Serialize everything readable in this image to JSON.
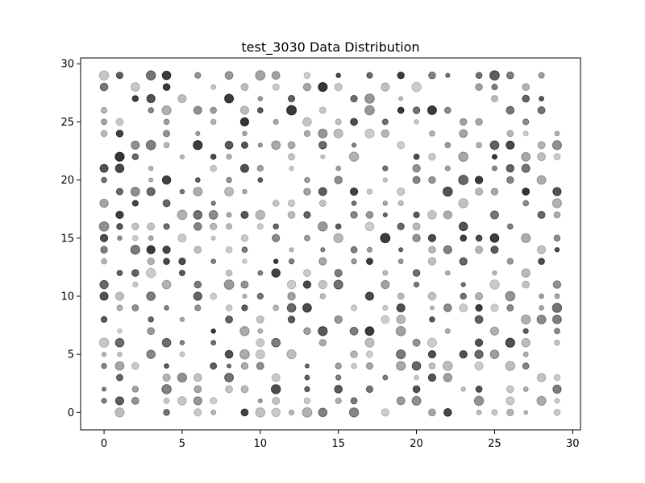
{
  "chart_data": {
    "type": "scatter",
    "title": "test_3030 Data Distribution",
    "xlabel": "",
    "ylabel": "",
    "xlim": [
      -1.5,
      30.5
    ],
    "ylim": [
      -1.5,
      30.5
    ],
    "xticks": [
      0,
      5,
      10,
      15,
      20,
      25,
      30
    ],
    "yticks": [
      0,
      5,
      10,
      15,
      20,
      25,
      30
    ],
    "grid": false,
    "marker_color": "#000000",
    "marker_alpha_range": [
      0.2,
      0.8
    ],
    "marker_size_range": [
      2.5,
      6
    ],
    "note_on_points": "Grid of x,y integer points in [0,29]; a subset of lattice positions is occupied, each with varying opacity and size",
    "points": [
      [
        0,
        29
      ],
      [
        1,
        29
      ],
      [
        3,
        29
      ],
      [
        4,
        29
      ],
      [
        6,
        29
      ],
      [
        8,
        29
      ],
      [
        10,
        29
      ],
      [
        11,
        29
      ],
      [
        13,
        29
      ],
      [
        15,
        29
      ],
      [
        17,
        29
      ],
      [
        19,
        29
      ],
      [
        21,
        29
      ],
      [
        22,
        29
      ],
      [
        24,
        29
      ],
      [
        25,
        29
      ],
      [
        26,
        29
      ],
      [
        28,
        29
      ],
      [
        0,
        28
      ],
      [
        2,
        28
      ],
      [
        4,
        28
      ],
      [
        7,
        28
      ],
      [
        9,
        28
      ],
      [
        11,
        28
      ],
      [
        13,
        28
      ],
      [
        14,
        28
      ],
      [
        15,
        28
      ],
      [
        18,
        28
      ],
      [
        20,
        28
      ],
      [
        24,
        28
      ],
      [
        25,
        28
      ],
      [
        27,
        28
      ],
      [
        2,
        27
      ],
      [
        3,
        27
      ],
      [
        5,
        27
      ],
      [
        8,
        27
      ],
      [
        10,
        27
      ],
      [
        12,
        27
      ],
      [
        16,
        27
      ],
      [
        17,
        27
      ],
      [
        19,
        27
      ],
      [
        25,
        27
      ],
      [
        27,
        27
      ],
      [
        28,
        27
      ],
      [
        0,
        26
      ],
      [
        3,
        26
      ],
      [
        4,
        26
      ],
      [
        6,
        26
      ],
      [
        7,
        26
      ],
      [
        9,
        26
      ],
      [
        10,
        26
      ],
      [
        12,
        26
      ],
      [
        14,
        26
      ],
      [
        17,
        26
      ],
      [
        19,
        26
      ],
      [
        20,
        26
      ],
      [
        21,
        26
      ],
      [
        22,
        26
      ],
      [
        26,
        26
      ],
      [
        28,
        26
      ],
      [
        0,
        25
      ],
      [
        1,
        25
      ],
      [
        4,
        25
      ],
      [
        7,
        25
      ],
      [
        9,
        25
      ],
      [
        11,
        25
      ],
      [
        13,
        25
      ],
      [
        15,
        25
      ],
      [
        16,
        25
      ],
      [
        18,
        25
      ],
      [
        20,
        25
      ],
      [
        23,
        25
      ],
      [
        24,
        25
      ],
      [
        27,
        25
      ],
      [
        0,
        24
      ],
      [
        1,
        24
      ],
      [
        4,
        24
      ],
      [
        6,
        24
      ],
      [
        9,
        24
      ],
      [
        13,
        24
      ],
      [
        14,
        24
      ],
      [
        15,
        24
      ],
      [
        17,
        24
      ],
      [
        18,
        24
      ],
      [
        21,
        24
      ],
      [
        23,
        24
      ],
      [
        26,
        24
      ],
      [
        27,
        24
      ],
      [
        29,
        24
      ],
      [
        2,
        23
      ],
      [
        3,
        23
      ],
      [
        4,
        23
      ],
      [
        6,
        23
      ],
      [
        8,
        23
      ],
      [
        9,
        23
      ],
      [
        10,
        23
      ],
      [
        11,
        23
      ],
      [
        12,
        23
      ],
      [
        14,
        23
      ],
      [
        16,
        23
      ],
      [
        19,
        23
      ],
      [
        22,
        23
      ],
      [
        24,
        23
      ],
      [
        25,
        23
      ],
      [
        26,
        23
      ],
      [
        28,
        23
      ],
      [
        29,
        23
      ],
      [
        1,
        22
      ],
      [
        2,
        22
      ],
      [
        5,
        22
      ],
      [
        7,
        22
      ],
      [
        8,
        22
      ],
      [
        12,
        22
      ],
      [
        14,
        22
      ],
      [
        16,
        22
      ],
      [
        20,
        22
      ],
      [
        21,
        22
      ],
      [
        23,
        22
      ],
      [
        25,
        22
      ],
      [
        27,
        22
      ],
      [
        28,
        22
      ],
      [
        29,
        22
      ],
      [
        0,
        21
      ],
      [
        1,
        21
      ],
      [
        3,
        21
      ],
      [
        7,
        21
      ],
      [
        9,
        21
      ],
      [
        10,
        21
      ],
      [
        12,
        21
      ],
      [
        15,
        21
      ],
      [
        18,
        21
      ],
      [
        20,
        21
      ],
      [
        22,
        21
      ],
      [
        25,
        21
      ],
      [
        26,
        21
      ],
      [
        27,
        21
      ],
      [
        0,
        20
      ],
      [
        3,
        20
      ],
      [
        4,
        20
      ],
      [
        6,
        20
      ],
      [
        8,
        20
      ],
      [
        10,
        20
      ],
      [
        13,
        20
      ],
      [
        15,
        20
      ],
      [
        18,
        20
      ],
      [
        20,
        20
      ],
      [
        21,
        20
      ],
      [
        23,
        20
      ],
      [
        24,
        20
      ],
      [
        26,
        20
      ],
      [
        28,
        20
      ],
      [
        1,
        19
      ],
      [
        2,
        19
      ],
      [
        3,
        19
      ],
      [
        5,
        19
      ],
      [
        6,
        19
      ],
      [
        8,
        19
      ],
      [
        9,
        19
      ],
      [
        13,
        19
      ],
      [
        14,
        19
      ],
      [
        16,
        19
      ],
      [
        17,
        19
      ],
      [
        19,
        19
      ],
      [
        22,
        19
      ],
      [
        24,
        19
      ],
      [
        25,
        19
      ],
      [
        27,
        19
      ],
      [
        29,
        19
      ],
      [
        0,
        18
      ],
      [
        2,
        18
      ],
      [
        4,
        18
      ],
      [
        7,
        18
      ],
      [
        11,
        18
      ],
      [
        12,
        18
      ],
      [
        14,
        18
      ],
      [
        16,
        18
      ],
      [
        18,
        18
      ],
      [
        19,
        18
      ],
      [
        23,
        18
      ],
      [
        27,
        18
      ],
      [
        29,
        18
      ],
      [
        1,
        17
      ],
      [
        5,
        17
      ],
      [
        6,
        17
      ],
      [
        7,
        17
      ],
      [
        8,
        17
      ],
      [
        9,
        17
      ],
      [
        10,
        17
      ],
      [
        12,
        17
      ],
      [
        13,
        17
      ],
      [
        16,
        17
      ],
      [
        17,
        17
      ],
      [
        18,
        17
      ],
      [
        20,
        17
      ],
      [
        21,
        17
      ],
      [
        22,
        17
      ],
      [
        25,
        17
      ],
      [
        28,
        17
      ],
      [
        29,
        17
      ],
      [
        0,
        16
      ],
      [
        1,
        16
      ],
      [
        2,
        16
      ],
      [
        3,
        16
      ],
      [
        4,
        16
      ],
      [
        6,
        16
      ],
      [
        7,
        16
      ],
      [
        8,
        16
      ],
      [
        10,
        16
      ],
      [
        11,
        16
      ],
      [
        14,
        16
      ],
      [
        15,
        16
      ],
      [
        17,
        16
      ],
      [
        19,
        16
      ],
      [
        20,
        16
      ],
      [
        23,
        16
      ],
      [
        26,
        16
      ],
      [
        0,
        15
      ],
      [
        1,
        15
      ],
      [
        2,
        15
      ],
      [
        3,
        15
      ],
      [
        5,
        15
      ],
      [
        7,
        15
      ],
      [
        9,
        15
      ],
      [
        11,
        15
      ],
      [
        13,
        15
      ],
      [
        15,
        15
      ],
      [
        18,
        15
      ],
      [
        20,
        15
      ],
      [
        21,
        15
      ],
      [
        23,
        15
      ],
      [
        24,
        15
      ],
      [
        25,
        15
      ],
      [
        27,
        15
      ],
      [
        29,
        15
      ],
      [
        0,
        14
      ],
      [
        2,
        14
      ],
      [
        3,
        14
      ],
      [
        4,
        14
      ],
      [
        6,
        14
      ],
      [
        8,
        14
      ],
      [
        9,
        14
      ],
      [
        12,
        14
      ],
      [
        14,
        14
      ],
      [
        16,
        14
      ],
      [
        17,
        14
      ],
      [
        19,
        14
      ],
      [
        21,
        14
      ],
      [
        22,
        14
      ],
      [
        24,
        14
      ],
      [
        25,
        14
      ],
      [
        28,
        14
      ],
      [
        29,
        14
      ],
      [
        0,
        13
      ],
      [
        3,
        13
      ],
      [
        4,
        13
      ],
      [
        5,
        13
      ],
      [
        7,
        13
      ],
      [
        9,
        13
      ],
      [
        11,
        13
      ],
      [
        12,
        13
      ],
      [
        14,
        13
      ],
      [
        16,
        13
      ],
      [
        17,
        13
      ],
      [
        19,
        13
      ],
      [
        21,
        13
      ],
      [
        23,
        13
      ],
      [
        26,
        13
      ],
      [
        28,
        13
      ],
      [
        1,
        12
      ],
      [
        2,
        12
      ],
      [
        3,
        12
      ],
      [
        5,
        12
      ],
      [
        8,
        12
      ],
      [
        10,
        12
      ],
      [
        11,
        12
      ],
      [
        13,
        12
      ],
      [
        15,
        12
      ],
      [
        18,
        12
      ],
      [
        20,
        12
      ],
      [
        22,
        12
      ],
      [
        25,
        12
      ],
      [
        27,
        12
      ],
      [
        0,
        11
      ],
      [
        2,
        11
      ],
      [
        4,
        11
      ],
      [
        6,
        11
      ],
      [
        8,
        11
      ],
      [
        9,
        11
      ],
      [
        12,
        11
      ],
      [
        13,
        11
      ],
      [
        14,
        11
      ],
      [
        15,
        11
      ],
      [
        18,
        11
      ],
      [
        20,
        11
      ],
      [
        23,
        11
      ],
      [
        25,
        11
      ],
      [
        27,
        11
      ],
      [
        29,
        11
      ],
      [
        0,
        10
      ],
      [
        1,
        10
      ],
      [
        3,
        10
      ],
      [
        6,
        10
      ],
      [
        7,
        10
      ],
      [
        9,
        10
      ],
      [
        10,
        10
      ],
      [
        12,
        10
      ],
      [
        14,
        10
      ],
      [
        17,
        10
      ],
      [
        19,
        10
      ],
      [
        21,
        10
      ],
      [
        23,
        10
      ],
      [
        24,
        10
      ],
      [
        26,
        10
      ],
      [
        28,
        10
      ],
      [
        29,
        10
      ],
      [
        1,
        9
      ],
      [
        2,
        9
      ],
      [
        4,
        9
      ],
      [
        6,
        9
      ],
      [
        8,
        9
      ],
      [
        9,
        9
      ],
      [
        11,
        9
      ],
      [
        12,
        9
      ],
      [
        13,
        9
      ],
      [
        16,
        9
      ],
      [
        18,
        9
      ],
      [
        19,
        9
      ],
      [
        21,
        9
      ],
      [
        22,
        9
      ],
      [
        23,
        9
      ],
      [
        24,
        9
      ],
      [
        25,
        9
      ],
      [
        26,
        9
      ],
      [
        28,
        9
      ],
      [
        29,
        9
      ],
      [
        0,
        8
      ],
      [
        3,
        8
      ],
      [
        5,
        8
      ],
      [
        8,
        8
      ],
      [
        10,
        8
      ],
      [
        12,
        8
      ],
      [
        15,
        8
      ],
      [
        18,
        8
      ],
      [
        19,
        8
      ],
      [
        21,
        8
      ],
      [
        24,
        8
      ],
      [
        27,
        8
      ],
      [
        28,
        8
      ],
      [
        29,
        8
      ],
      [
        1,
        7
      ],
      [
        3,
        7
      ],
      [
        7,
        7
      ],
      [
        9,
        7
      ],
      [
        10,
        7
      ],
      [
        13,
        7
      ],
      [
        14,
        7
      ],
      [
        16,
        7
      ],
      [
        17,
        7
      ],
      [
        19,
        7
      ],
      [
        22,
        7
      ],
      [
        25,
        7
      ],
      [
        27,
        7
      ],
      [
        29,
        7
      ],
      [
        0,
        6
      ],
      [
        1,
        6
      ],
      [
        4,
        6
      ],
      [
        5,
        6
      ],
      [
        7,
        6
      ],
      [
        10,
        6
      ],
      [
        11,
        6
      ],
      [
        14,
        6
      ],
      [
        17,
        6
      ],
      [
        20,
        6
      ],
      [
        21,
        6
      ],
      [
        24,
        6
      ],
      [
        26,
        6
      ],
      [
        27,
        6
      ],
      [
        29,
        6
      ],
      [
        0,
        5
      ],
      [
        1,
        5
      ],
      [
        3,
        5
      ],
      [
        5,
        5
      ],
      [
        8,
        5
      ],
      [
        9,
        5
      ],
      [
        10,
        5
      ],
      [
        12,
        5
      ],
      [
        16,
        5
      ],
      [
        17,
        5
      ],
      [
        19,
        5
      ],
      [
        21,
        5
      ],
      [
        23,
        5
      ],
      [
        24,
        5
      ],
      [
        25,
        5
      ],
      [
        27,
        5
      ],
      [
        0,
        4
      ],
      [
        1,
        4
      ],
      [
        2,
        4
      ],
      [
        4,
        4
      ],
      [
        7,
        4
      ],
      [
        8,
        4
      ],
      [
        9,
        4
      ],
      [
        10,
        4
      ],
      [
        13,
        4
      ],
      [
        15,
        4
      ],
      [
        16,
        4
      ],
      [
        17,
        4
      ],
      [
        19,
        4
      ],
      [
        20,
        4
      ],
      [
        21,
        4
      ],
      [
        22,
        4
      ],
      [
        24,
        4
      ],
      [
        26,
        4
      ],
      [
        27,
        4
      ],
      [
        1,
        3
      ],
      [
        4,
        3
      ],
      [
        5,
        3
      ],
      [
        6,
        3
      ],
      [
        8,
        3
      ],
      [
        11,
        3
      ],
      [
        13,
        3
      ],
      [
        15,
        3
      ],
      [
        18,
        3
      ],
      [
        20,
        3
      ],
      [
        21,
        3
      ],
      [
        22,
        3
      ],
      [
        28,
        3
      ],
      [
        29,
        3
      ],
      [
        0,
        2
      ],
      [
        2,
        2
      ],
      [
        4,
        2
      ],
      [
        6,
        2
      ],
      [
        8,
        2
      ],
      [
        9,
        2
      ],
      [
        11,
        2
      ],
      [
        13,
        2
      ],
      [
        15,
        2
      ],
      [
        17,
        2
      ],
      [
        20,
        2
      ],
      [
        23,
        2
      ],
      [
        24,
        2
      ],
      [
        26,
        2
      ],
      [
        27,
        2
      ],
      [
        29,
        2
      ],
      [
        0,
        1
      ],
      [
        1,
        1
      ],
      [
        2,
        1
      ],
      [
        4,
        1
      ],
      [
        5,
        1
      ],
      [
        6,
        1
      ],
      [
        7,
        1
      ],
      [
        10,
        1
      ],
      [
        11,
        1
      ],
      [
        13,
        1
      ],
      [
        15,
        1
      ],
      [
        16,
        1
      ],
      [
        19,
        1
      ],
      [
        20,
        1
      ],
      [
        24,
        1
      ],
      [
        26,
        1
      ],
      [
        28,
        1
      ],
      [
        29,
        1
      ],
      [
        1,
        0
      ],
      [
        4,
        0
      ],
      [
        6,
        0
      ],
      [
        7,
        0
      ],
      [
        9,
        0
      ],
      [
        10,
        0
      ],
      [
        11,
        0
      ],
      [
        12,
        0
      ],
      [
        13,
        0
      ],
      [
        14,
        0
      ],
      [
        16,
        0
      ],
      [
        18,
        0
      ],
      [
        21,
        0
      ],
      [
        22,
        0
      ],
      [
        24,
        0
      ],
      [
        25,
        0
      ],
      [
        26,
        0
      ],
      [
        27,
        0
      ],
      [
        29,
        0
      ]
    ]
  }
}
